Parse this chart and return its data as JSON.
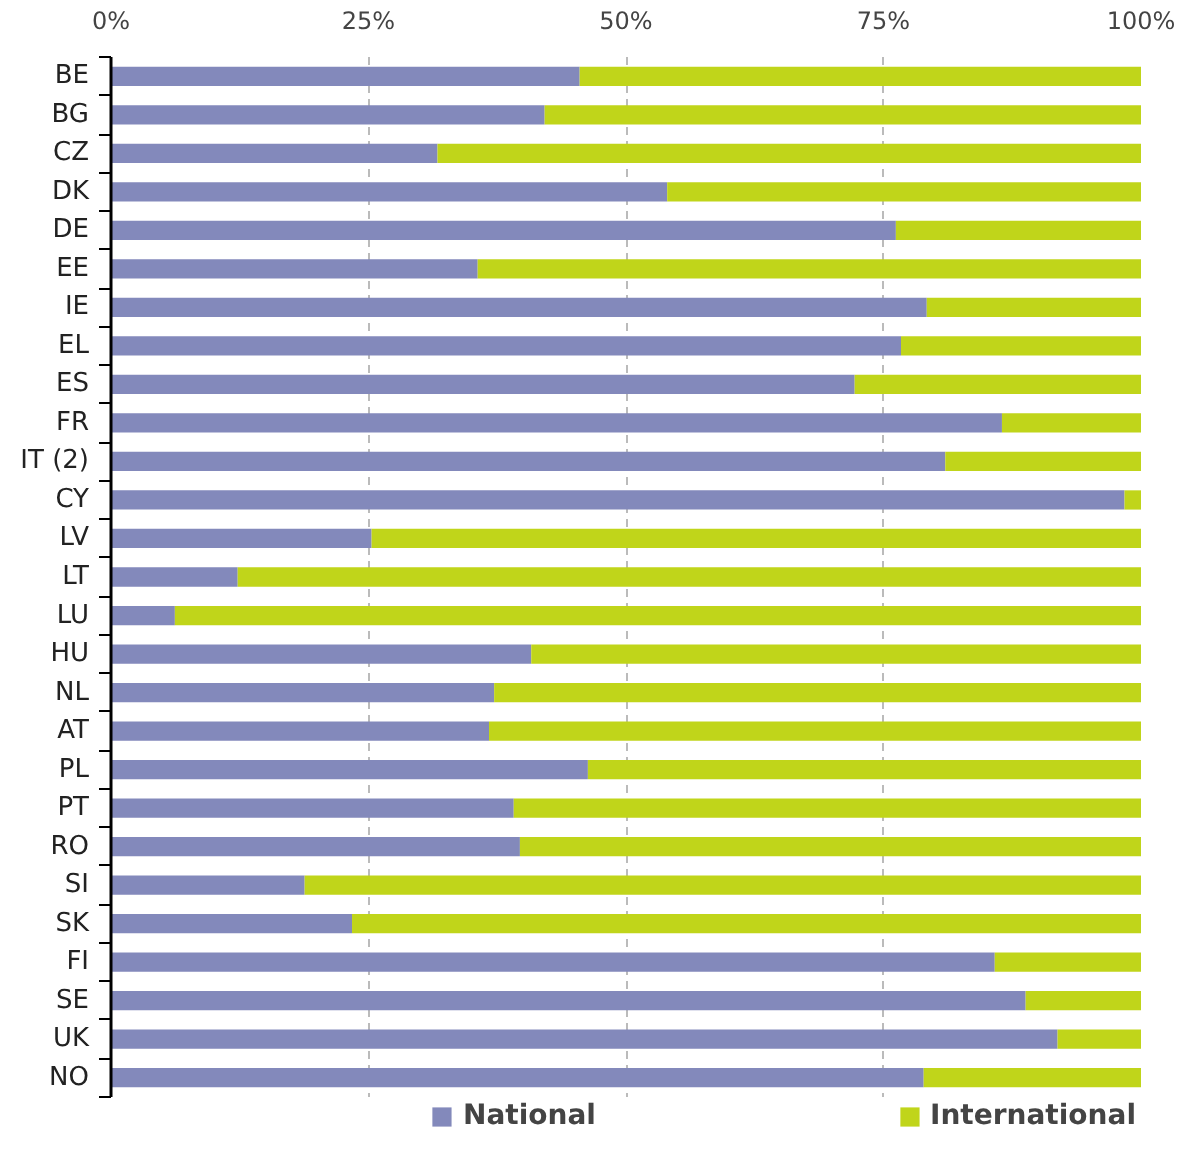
{
  "chart_data": {
    "type": "bar",
    "orientation": "horizontal",
    "stacked": true,
    "categories": [
      "BE",
      "BG",
      "CZ",
      "DK",
      "DE",
      "EE",
      "IE",
      "EL",
      "ES",
      "FR",
      "IT (2)",
      "CY",
      "LV",
      "LT",
      "LU",
      "HU",
      "NL",
      "AT",
      "PL",
      "PT",
      "RO",
      "SI",
      "SK",
      "FI",
      "SE",
      "UK",
      "NO"
    ],
    "series": [
      {
        "name": "National",
        "color": "#8389bb",
        "values": [
          45.5,
          42.1,
          31.7,
          54.0,
          76.2,
          35.6,
          79.2,
          76.7,
          72.2,
          86.5,
          81.0,
          98.4,
          25.3,
          12.3,
          6.2,
          40.8,
          37.2,
          36.7,
          46.3,
          39.1,
          39.7,
          18.8,
          23.4,
          85.8,
          88.8,
          91.9,
          78.9
        ]
      },
      {
        "name": "International",
        "color": "#c0d51a",
        "values": [
          54.5,
          57.9,
          68.3,
          46.0,
          23.8,
          64.4,
          20.8,
          23.3,
          27.8,
          13.5,
          19.0,
          1.6,
          74.7,
          87.7,
          93.8,
          59.2,
          62.8,
          63.3,
          53.7,
          60.9,
          60.3,
          81.2,
          76.6,
          14.2,
          11.2,
          8.1,
          21.1
        ]
      }
    ],
    "xlim": [
      0,
      100
    ],
    "xticks": [
      {
        "value": 0,
        "label": "0%"
      },
      {
        "value": 25,
        "label": "25%"
      },
      {
        "value": 50,
        "label": "50%"
      },
      {
        "value": 75,
        "label": "75%"
      },
      {
        "value": 100,
        "label": "100%"
      }
    ],
    "grid": "x",
    "legend": "bottom"
  }
}
